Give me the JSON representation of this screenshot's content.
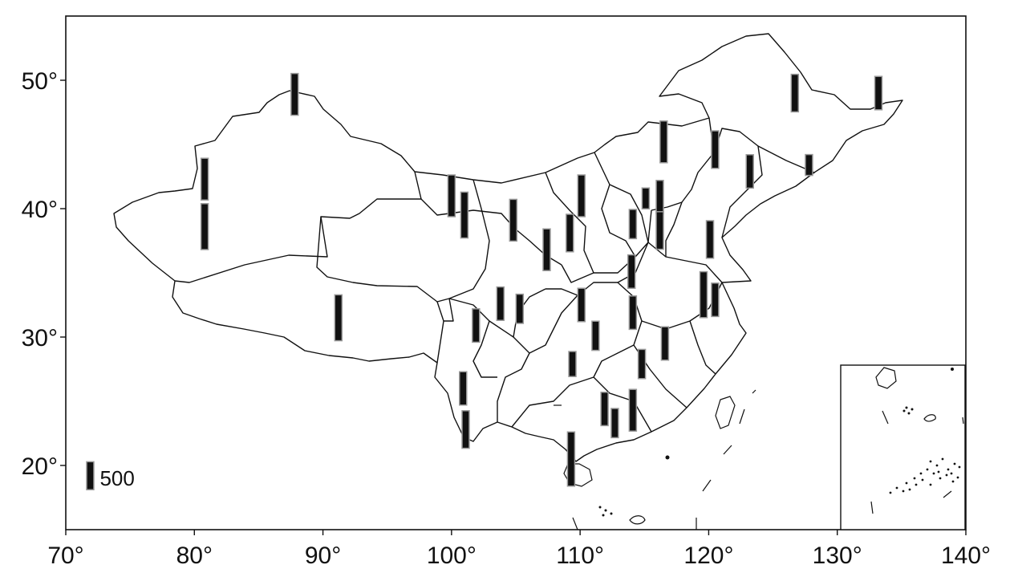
{
  "chart_data": {
    "type": "map-bar",
    "title": "",
    "xlim": [
      70,
      140
    ],
    "ylim": [
      15,
      55
    ],
    "x_ticks": [
      70,
      80,
      90,
      100,
      110,
      120,
      130,
      140
    ],
    "y_ticks": [
      20,
      30,
      40,
      50
    ],
    "tick_suffix": "°",
    "legend": {
      "value": 500,
      "label": "500",
      "lon": 71.9,
      "lat": 19.2
    },
    "bar_color": "#111111",
    "bar_edge_color": "#9a9a9a",
    "stations": [
      {
        "lon": 87.8,
        "lat": 48.9,
        "value": 500
      },
      {
        "lon": 80.8,
        "lat": 42.3,
        "value": 500
      },
      {
        "lon": 80.8,
        "lat": 38.6,
        "value": 550
      },
      {
        "lon": 91.2,
        "lat": 31.5,
        "value": 550
      },
      {
        "lon": 100.0,
        "lat": 41.0,
        "value": 500
      },
      {
        "lon": 101.0,
        "lat": 39.5,
        "value": 550
      },
      {
        "lon": 104.8,
        "lat": 39.1,
        "value": 500
      },
      {
        "lon": 107.4,
        "lat": 36.8,
        "value": 500
      },
      {
        "lon": 109.2,
        "lat": 38.1,
        "value": 450
      },
      {
        "lon": 110.1,
        "lat": 41.0,
        "value": 500
      },
      {
        "lon": 103.8,
        "lat": 32.6,
        "value": 400
      },
      {
        "lon": 105.3,
        "lat": 32.2,
        "value": 350
      },
      {
        "lon": 101.9,
        "lat": 30.9,
        "value": 400
      },
      {
        "lon": 110.1,
        "lat": 32.5,
        "value": 400
      },
      {
        "lon": 111.2,
        "lat": 30.1,
        "value": 350
      },
      {
        "lon": 109.4,
        "lat": 27.9,
        "value": 300
      },
      {
        "lon": 100.9,
        "lat": 26.0,
        "value": 400
      },
      {
        "lon": 101.1,
        "lat": 22.8,
        "value": 450
      },
      {
        "lon": 109.3,
        "lat": 20.5,
        "value": 650
      },
      {
        "lon": 111.9,
        "lat": 24.4,
        "value": 400
      },
      {
        "lon": 112.7,
        "lat": 23.3,
        "value": 350
      },
      {
        "lon": 114.1,
        "lat": 24.3,
        "value": 500
      },
      {
        "lon": 114.8,
        "lat": 27.9,
        "value": 350
      },
      {
        "lon": 116.6,
        "lat": 29.5,
        "value": 400
      },
      {
        "lon": 114.1,
        "lat": 31.9,
        "value": 400
      },
      {
        "lon": 114.0,
        "lat": 35.1,
        "value": 400
      },
      {
        "lon": 114.1,
        "lat": 38.8,
        "value": 350
      },
      {
        "lon": 115.1,
        "lat": 40.8,
        "value": 250
      },
      {
        "lon": 116.2,
        "lat": 40.9,
        "value": 400
      },
      {
        "lon": 116.5,
        "lat": 45.2,
        "value": 500
      },
      {
        "lon": 116.2,
        "lat": 38.3,
        "value": 450
      },
      {
        "lon": 120.1,
        "lat": 37.6,
        "value": 450
      },
      {
        "lon": 120.5,
        "lat": 44.6,
        "value": 450
      },
      {
        "lon": 123.2,
        "lat": 42.9,
        "value": 400
      },
      {
        "lon": 127.8,
        "lat": 43.4,
        "value": 250
      },
      {
        "lon": 126.7,
        "lat": 49.0,
        "value": 450
      },
      {
        "lon": 133.2,
        "lat": 49.0,
        "value": 400
      },
      {
        "lon": 119.6,
        "lat": 33.3,
        "value": 550
      },
      {
        "lon": 120.5,
        "lat": 32.9,
        "value": 400
      }
    ]
  }
}
